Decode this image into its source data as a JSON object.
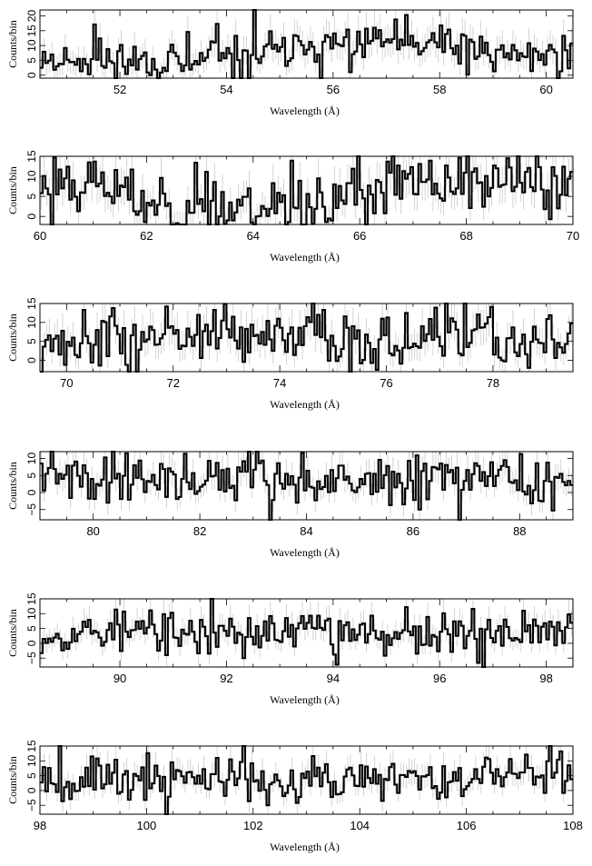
{
  "colors": {
    "histogram": "#000000",
    "errorbar": "#c8c8c8",
    "frame": "#000000",
    "background": "#ffffff"
  },
  "chart_data": [
    {
      "type": "line",
      "style": "step-histogram-with-errorbars",
      "xlabel": "Wavelength (Å)",
      "ylabel": "Counts/bin",
      "xlim": [
        50.5,
        60.5
      ],
      "ylim": [
        -1,
        22
      ],
      "xticks": [
        52,
        54,
        56,
        58,
        60
      ],
      "yticks": [
        0,
        5,
        10,
        15,
        20
      ],
      "yticklabels": [
        "0",
        "5",
        "10",
        "15",
        "20"
      ],
      "seed": 11,
      "bins": 200,
      "envelope": [
        [
          50.5,
          7
        ],
        [
          52,
          5
        ],
        [
          54,
          5
        ],
        [
          55,
          8
        ],
        [
          56,
          10
        ],
        [
          57,
          12
        ],
        [
          58,
          9
        ],
        [
          59,
          7
        ],
        [
          60.5,
          7
        ]
      ],
      "series": [
        {
          "values": []
        }
      ]
    },
    {
      "type": "line",
      "style": "step-histogram-with-errorbars",
      "xlabel": "Wavelength (Å)",
      "ylabel": "Counts/bin",
      "xlim": [
        60,
        70
      ],
      "ylim": [
        -2,
        15
      ],
      "xticks": [
        60,
        62,
        64,
        66,
        68,
        70
      ],
      "yticks": [
        0,
        5,
        10,
        15
      ],
      "yticklabels": [
        "0",
        "5",
        "10",
        "15"
      ],
      "seed": 23,
      "bins": 200,
      "envelope": [
        [
          60,
          8
        ],
        [
          61,
          9
        ],
        [
          62,
          4
        ],
        [
          63,
          2
        ],
        [
          64,
          3
        ],
        [
          65,
          3
        ],
        [
          66,
          5
        ],
        [
          67,
          8
        ],
        [
          68,
          8
        ],
        [
          69,
          8
        ],
        [
          70,
          8
        ]
      ],
      "series": [
        {
          "values": []
        }
      ]
    },
    {
      "type": "line",
      "style": "step-histogram-with-errorbars",
      "xlabel": "Wavelength (Å)",
      "ylabel": "Counts/bin",
      "xlim": [
        69.5,
        79.5
      ],
      "ylim": [
        -3,
        15
      ],
      "xticks": [
        70,
        72,
        74,
        76,
        78
      ],
      "yticks": [
        0,
        5,
        10,
        15
      ],
      "yticklabels": [
        "0",
        "5",
        "10",
        "15"
      ],
      "seed": 37,
      "bins": 200,
      "envelope": [
        [
          69.5,
          6
        ],
        [
          72,
          6
        ],
        [
          74,
          6
        ],
        [
          76,
          6
        ],
        [
          78,
          5
        ],
        [
          79.5,
          4
        ]
      ],
      "series": [
        {
          "values": []
        }
      ]
    },
    {
      "type": "line",
      "style": "step-histogram-with-errorbars",
      "xlabel": "Wavelength (Å)",
      "ylabel": "Counts/bin",
      "xlim": [
        79,
        89
      ],
      "ylim": [
        -8,
        12
      ],
      "xticks": [
        80,
        82,
        84,
        86,
        88
      ],
      "yticks": [
        -5,
        0,
        5,
        10
      ],
      "yticklabels": [
        "−5",
        "0",
        "5",
        "10"
      ],
      "seed": 41,
      "bins": 200,
      "envelope": [
        [
          79,
          4
        ],
        [
          81,
          5
        ],
        [
          83,
          4
        ],
        [
          85,
          3
        ],
        [
          87,
          4
        ],
        [
          89,
          3
        ]
      ],
      "series": [
        {
          "values": []
        }
      ]
    },
    {
      "type": "line",
      "style": "step-histogram-with-errorbars",
      "xlabel": "Wavelength (Å)",
      "ylabel": "Counts/bin",
      "xlim": [
        88.5,
        98.5
      ],
      "ylim": [
        -8,
        15
      ],
      "xticks": [
        90,
        92,
        94,
        96,
        98
      ],
      "yticks": [
        -5,
        0,
        5,
        10,
        15
      ],
      "yticklabels": [
        "−5",
        "0",
        "5",
        "10",
        "15"
      ],
      "seed": 53,
      "bins": 200,
      "envelope": [
        [
          88.5,
          4
        ],
        [
          90,
          4
        ],
        [
          92,
          3
        ],
        [
          94,
          5
        ],
        [
          96,
          3
        ],
        [
          98.5,
          4
        ]
      ],
      "series": [
        {
          "values": []
        }
      ]
    },
    {
      "type": "line",
      "style": "step-histogram-with-errorbars",
      "xlabel": "Wavelength (Å)",
      "ylabel": "Counts/bin",
      "xlim": [
        98,
        108
      ],
      "ylim": [
        -8,
        15
      ],
      "xticks": [
        98,
        100,
        102,
        104,
        106,
        108
      ],
      "yticks": [
        -5,
        0,
        5,
        10,
        15
      ],
      "yticklabels": [
        "−5",
        "0",
        "5",
        "10",
        "15"
      ],
      "seed": 67,
      "bins": 200,
      "envelope": [
        [
          98,
          4
        ],
        [
          100,
          4
        ],
        [
          102,
          4
        ],
        [
          104,
          5
        ],
        [
          106,
          4
        ],
        [
          108,
          4
        ]
      ],
      "series": [
        {
          "values": []
        }
      ]
    }
  ]
}
